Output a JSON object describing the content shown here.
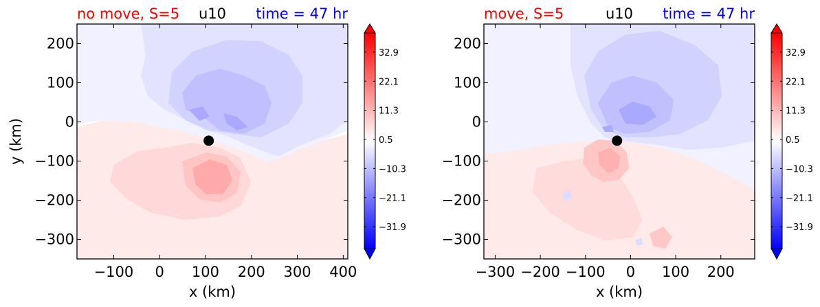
{
  "chart_data": [
    {
      "type": "heatmap",
      "variable": "u10",
      "title_left": "no move, S=5",
      "title_center": "u10",
      "title_right": "time = 47 hr",
      "title_left_color": "#ff0000",
      "title_right_color": "#0000ff",
      "xlabel": "x (km)",
      "ylabel": "y (km)",
      "xlim": [
        -180,
        410
      ],
      "ylim": [
        -350,
        250
      ],
      "xticks": [
        -100,
        0,
        100,
        200,
        300,
        400
      ],
      "yticks": [
        200,
        100,
        0,
        -100,
        -200,
        -300
      ],
      "xticklabels": [
        "−100",
        "0",
        "100",
        "200",
        "300",
        "400"
      ],
      "yticklabels": [
        "200",
        "100",
        "0",
        "−100",
        "−200",
        "−300"
      ],
      "storm_center": [
        107,
        -48
      ],
      "colorbar": {
        "range": [
          -40,
          40
        ],
        "ticks": [
          32.9,
          22.1,
          11.3,
          0.5,
          -10.3,
          -21.1,
          -31.9
        ],
        "ticklabels": [
          "32.9",
          "22.1",
          "11.3",
          "0.5",
          "−10.3",
          "−21.1",
          "−31.9"
        ],
        "colormap": "bwr",
        "extend": "both"
      }
    },
    {
      "type": "heatmap",
      "variable": "u10",
      "title_left": "move, S=5",
      "title_center": "u10",
      "title_right": "time = 47 hr",
      "title_left_color": "#ff0000",
      "title_right_color": "#0000ff",
      "xlabel": "x (km)",
      "ylabel": "",
      "xlim": [
        -325,
        275
      ],
      "ylim": [
        -350,
        250
      ],
      "xticks": [
        -300,
        -200,
        -100,
        0,
        100,
        200
      ],
      "yticks": [
        200,
        100,
        0,
        -100,
        -200,
        -300
      ],
      "xticklabels": [
        "−300",
        "−200",
        "−100",
        "0",
        "100",
        "200"
      ],
      "yticklabels": [
        "200",
        "100",
        "0",
        "−100",
        "−200",
        "−300"
      ],
      "storm_center": [
        -30,
        -48
      ],
      "colorbar": {
        "range": [
          -40,
          40
        ],
        "ticks": [
          32.9,
          22.1,
          11.3,
          0.5,
          -10.3,
          -21.1,
          -31.9
        ],
        "ticklabels": [
          "32.9",
          "22.1",
          "11.3",
          "0.5",
          "−10.3",
          "−21.1",
          "−31.9"
        ],
        "colormap": "bwr",
        "extend": "both"
      }
    }
  ]
}
